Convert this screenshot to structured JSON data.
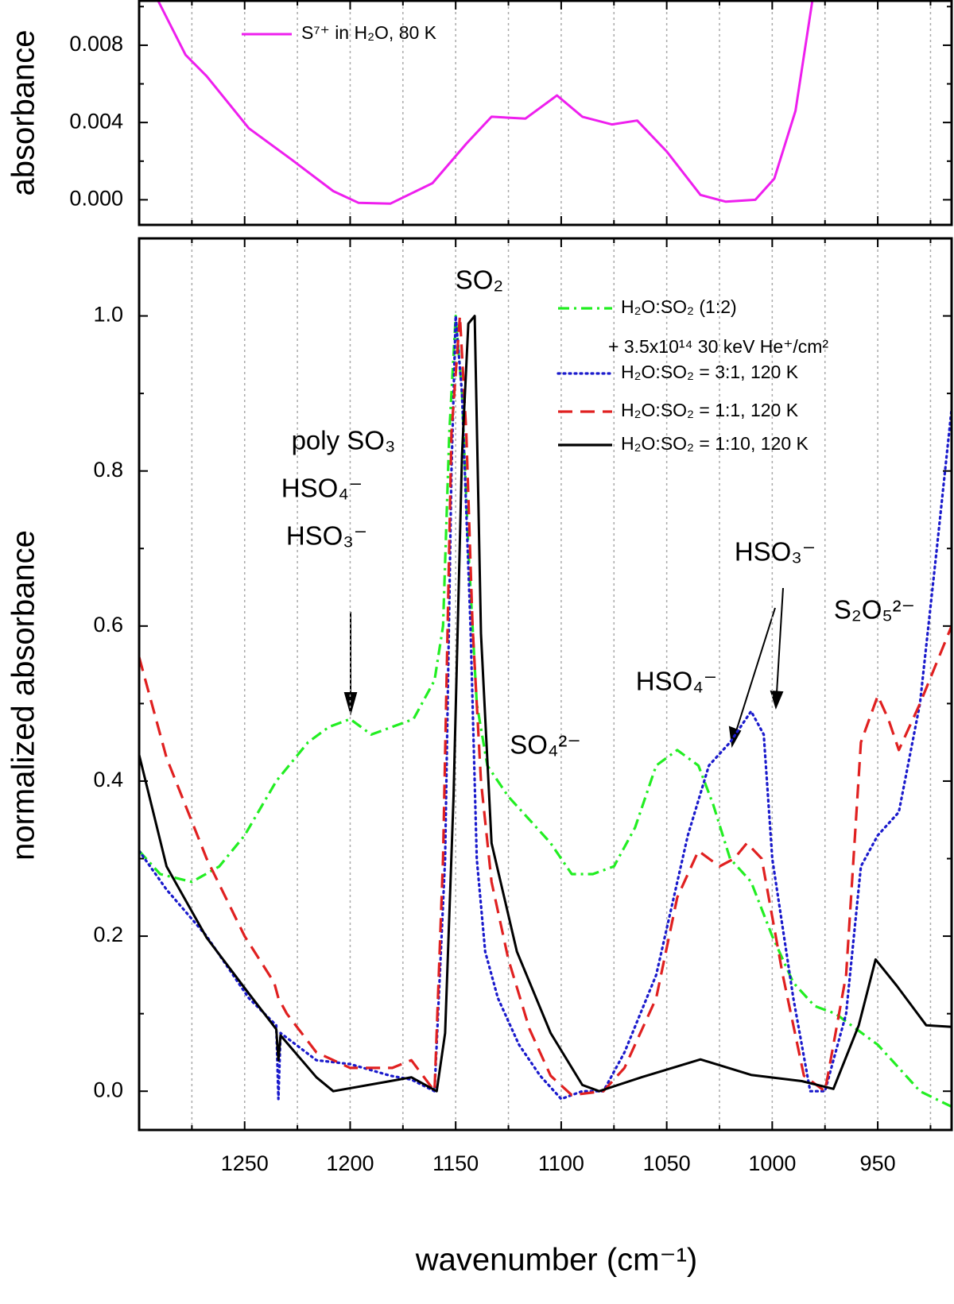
{
  "chart_data": [
    {
      "type": "line",
      "ylabel": "absorbance",
      "xlim": [
        1300,
        915
      ],
      "xticks": [
        1250,
        1200,
        1150,
        1100,
        1050,
        1000,
        950
      ],
      "xticklabels": false,
      "xminorticks": [
        1275,
        1225,
        1175,
        1125,
        1075,
        1025,
        975,
        925
      ],
      "ylim": [
        -0.0013,
        0.0103
      ],
      "yticks": [
        {
          "value": 0,
          "label": "0.000"
        },
        {
          "value": 0.004,
          "label": "0.004"
        },
        {
          "value": 0.008,
          "label": "0.008"
        }
      ],
      "yminorticks": [
        0.002,
        0.006,
        0.01
      ],
      "grid": "x",
      "legend": "upper left",
      "series": [
        {
          "name": "S⁷⁺ in H₂O, 80 K",
          "color": "#ee1fee",
          "style": "solid",
          "x": [
            1291,
            1278,
            1268,
            1248,
            1228,
            1208,
            1196,
            1181,
            1161,
            1145,
            1133,
            1117,
            1102,
            1090,
            1076,
            1064,
            1050,
            1034,
            1022,
            1008,
            999,
            989,
            981
          ],
          "values": [
            0.0103,
            0.0075,
            0.0064,
            0.0037,
            0.0021,
            0.00045,
            -0.00016,
            -0.0002,
            0.00086,
            0.0029,
            0.0043,
            0.0042,
            0.0054,
            0.0043,
            0.0039,
            0.0041,
            0.0025,
            0.00025,
            -0.0001,
            0,
            0.0011,
            0.0046,
            0.0103
          ]
        }
      ]
    },
    {
      "type": "line",
      "xlabel": "wavenumber (cm⁻¹)",
      "ylabel": "normalized absorbance",
      "xlim": [
        1300,
        915
      ],
      "xticks": [
        1250,
        1200,
        1150,
        1100,
        1050,
        1000,
        950
      ],
      "xticklabels": true,
      "xminorticks": [
        1275,
        1225,
        1175,
        1125,
        1075,
        1025,
        975,
        925
      ],
      "ylim": [
        -0.05,
        1.1
      ],
      "yticks": [
        {
          "value": 0,
          "label": "0.0"
        },
        {
          "value": 0.2,
          "label": "0.2"
        },
        {
          "value": 0.4,
          "label": "0.4"
        },
        {
          "value": 0.6,
          "label": "0.6"
        },
        {
          "value": 0.8,
          "label": "0.8"
        },
        {
          "value": 1,
          "label": "1.0"
        }
      ],
      "yminorticks": [
        0.1,
        0.3,
        0.5,
        0.7,
        0.9
      ],
      "grid": "x",
      "legend": "upper right",
      "legend_note": "+ 3.5x10¹⁴ 30 keV He⁺/cm²",
      "annotations": [
        "SO₂",
        "poly SO₃",
        "HSO₄⁻",
        "HSO₃⁻",
        "SO₄²⁻",
        "HSO₄⁻",
        "HSO₃⁻",
        "S₂O₅²⁻"
      ],
      "series": [
        {
          "name": "H₂O:SO₂ (1:2)",
          "color": "#22ee22",
          "style": "dashdot",
          "x": [
            1300,
            1290,
            1275,
            1262,
            1250,
            1235,
            1220,
            1210,
            1200,
            1190,
            1180,
            1170,
            1160,
            1156,
            1153,
            1150,
            1147,
            1144,
            1140,
            1135,
            1125,
            1115,
            1105,
            1095,
            1085,
            1075,
            1065,
            1055,
            1045,
            1035,
            1028,
            1020,
            1010,
            1000,
            990,
            980,
            970,
            960,
            950,
            940,
            930,
            915
          ],
          "values": [
            0.31,
            0.28,
            0.27,
            0.29,
            0.33,
            0.4,
            0.45,
            0.47,
            0.48,
            0.46,
            0.47,
            0.48,
            0.53,
            0.6,
            0.85,
            1.0,
            0.9,
            0.7,
            0.5,
            0.42,
            0.38,
            0.35,
            0.32,
            0.28,
            0.28,
            0.29,
            0.34,
            0.42,
            0.44,
            0.42,
            0.37,
            0.3,
            0.27,
            0.2,
            0.14,
            0.11,
            0.1,
            0.08,
            0.06,
            0.03,
            0.0,
            -0.02
          ]
        },
        {
          "name": "H₂O:SO₂ = 3:1, 120 K",
          "color": "#1a1acc",
          "style": "dotted",
          "x": [
            1300,
            1287,
            1268,
            1248,
            1235,
            1234,
            1233,
            1216,
            1200,
            1181,
            1171,
            1160,
            1155,
            1152,
            1150,
            1147,
            1143,
            1140,
            1136,
            1130,
            1120,
            1110,
            1100,
            1090,
            1080,
            1070,
            1055,
            1040,
            1030,
            1020,
            1010,
            1004,
            1000,
            990,
            982,
            975,
            965,
            958,
            950,
            940,
            930,
            922,
            915
          ],
          "values": [
            0.31,
            0.26,
            0.2,
            0.12,
            0.085,
            -0.01,
            0.075,
            0.04,
            0.035,
            0.02,
            0.015,
            0.0,
            0.3,
            0.8,
            1.0,
            0.9,
            0.6,
            0.3,
            0.18,
            0.12,
            0.06,
            0.02,
            -0.01,
            0.0,
            0.0,
            0.05,
            0.15,
            0.33,
            0.42,
            0.45,
            0.49,
            0.46,
            0.3,
            0.12,
            0.0,
            0.0,
            0.1,
            0.29,
            0.33,
            0.36,
            0.5,
            0.7,
            0.88
          ]
        },
        {
          "name": "H₂O:SO₂ = 1:1, 120 K",
          "color": "#e02020",
          "style": "dashed",
          "x": [
            1300,
            1287,
            1268,
            1250,
            1236,
            1234,
            1230,
            1216,
            1200,
            1180,
            1171,
            1160,
            1156,
            1152,
            1148,
            1145,
            1142,
            1138,
            1133,
            1125,
            1115,
            1105,
            1095,
            1080,
            1070,
            1055,
            1045,
            1035,
            1025,
            1018,
            1012,
            1005,
            995,
            985,
            975,
            965,
            958,
            950,
            945,
            940,
            930,
            915
          ],
          "values": [
            0.56,
            0.43,
            0.3,
            0.2,
            0.14,
            0.12,
            0.1,
            0.05,
            0.03,
            0.03,
            0.04,
            0.0,
            0.3,
            0.85,
            1.0,
            0.85,
            0.6,
            0.4,
            0.27,
            0.17,
            0.08,
            0.02,
            -0.005,
            0.0,
            0.03,
            0.12,
            0.25,
            0.31,
            0.29,
            0.3,
            0.32,
            0.3,
            0.15,
            0.02,
            0.0,
            0.15,
            0.45,
            0.51,
            0.48,
            0.44,
            0.5,
            0.6
          ]
        },
        {
          "name": "H₂O:SO₂ = 1:10, 120 K",
          "color": "#000000",
          "style": "solid",
          "x": [
            1300,
            1287,
            1268,
            1248,
            1235,
            1234,
            1233,
            1216,
            1208,
            1181,
            1171,
            1159,
            1155,
            1151,
            1147,
            1144,
            1141,
            1138,
            1133,
            1121,
            1105,
            1090,
            1082,
            1062,
            1034,
            1010,
            986,
            971,
            959,
            951,
            941,
            927,
            915
          ],
          "values": [
            0.434,
            0.29,
            0.198,
            0.126,
            0.08,
            0.04,
            0.072,
            0.018,
            0.0,
            0.013,
            0.018,
            0.0,
            0.075,
            0.38,
            0.82,
            0.99,
            1.0,
            0.59,
            0.32,
            0.18,
            0.075,
            0.008,
            0.0,
            0.018,
            0.041,
            0.021,
            0.013,
            0.003,
            0.085,
            0.17,
            0.136,
            0.085,
            0.083
          ]
        }
      ]
    }
  ]
}
